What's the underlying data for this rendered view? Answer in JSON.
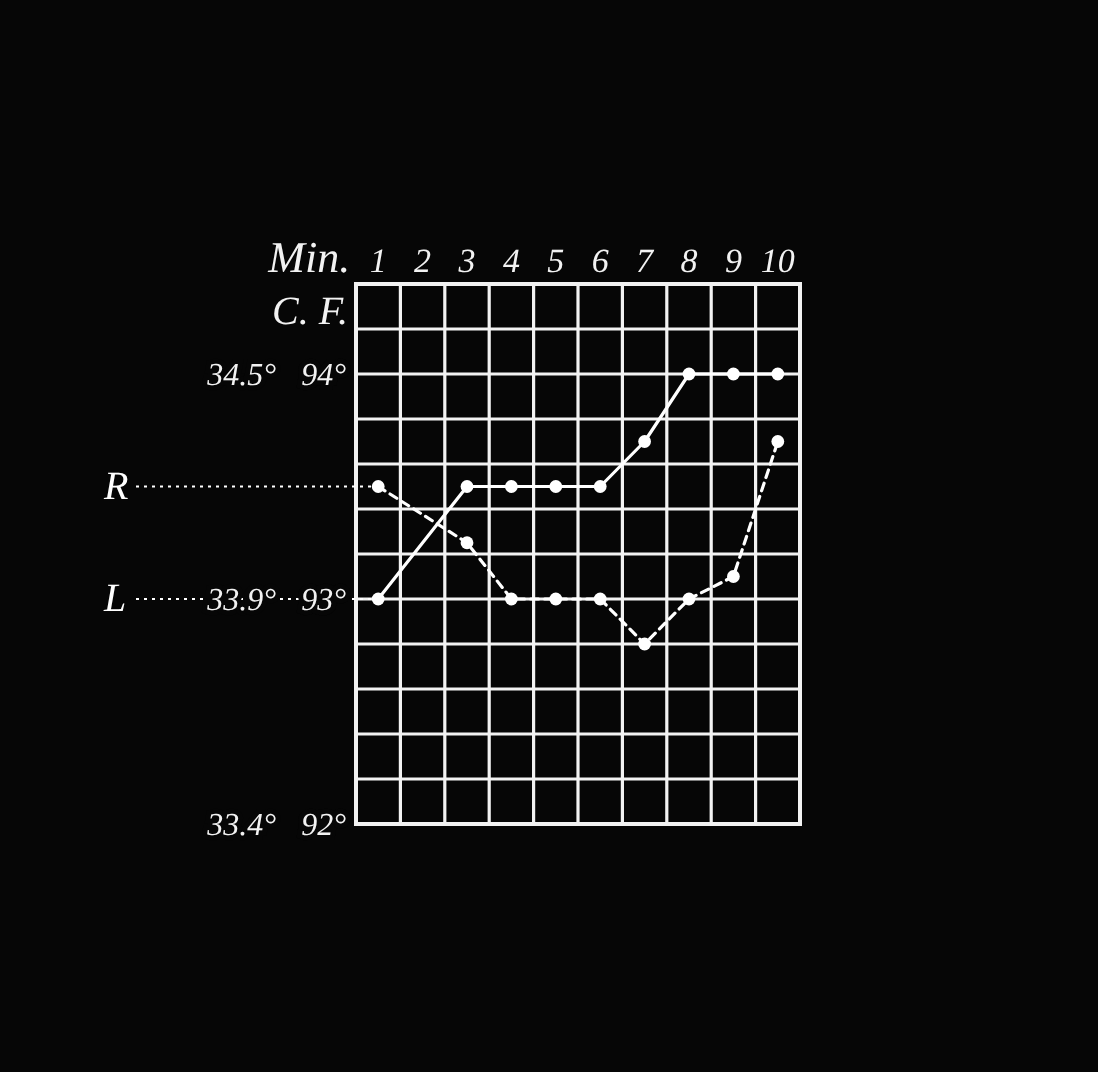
{
  "chart_data": {
    "type": "line",
    "xlabel": "Min.",
    "ylabel": "C. F.",
    "categories": [
      "1",
      "2",
      "3",
      "4",
      "5",
      "6",
      "7",
      "8",
      "9",
      "10"
    ],
    "ylim": [
      92,
      94.4
    ],
    "annotations": [
      "33.4°",
      "33.9°",
      "34.5°"
    ],
    "yticks": [
      {
        "value": 92,
        "label": "92°"
      },
      {
        "value": 92.2,
        "label": null
      },
      {
        "value": 92.4,
        "label": null
      },
      {
        "value": 92.6,
        "label": null
      },
      {
        "value": 92.8,
        "label": null
      },
      {
        "value": 93,
        "label": "93°"
      },
      {
        "value": 93.2,
        "label": null
      },
      {
        "value": 93.4,
        "label": null
      },
      {
        "value": 93.6,
        "label": null
      },
      {
        "value": 93.8,
        "label": null
      },
      {
        "value": 94,
        "label": "94°"
      },
      {
        "value": 94.2,
        "label": null
      },
      {
        "value": 94.4,
        "label": null
      }
    ],
    "grid": true,
    "marker": "circle",
    "series": [
      {
        "name": "R",
        "color": "#ffffff",
        "line_style": "dashed",
        "values": [
          93.5,
          null,
          93.25,
          93.0,
          93.0,
          93.0,
          92.8,
          93.0,
          93.1,
          93.7
        ]
      },
      {
        "name": "L",
        "color": "#ffffff",
        "line_style": "solid",
        "values": [
          93.0,
          null,
          93.5,
          93.5,
          93.5,
          93.5,
          93.7,
          94.0,
          94.0,
          94.0
        ]
      }
    ]
  }
}
